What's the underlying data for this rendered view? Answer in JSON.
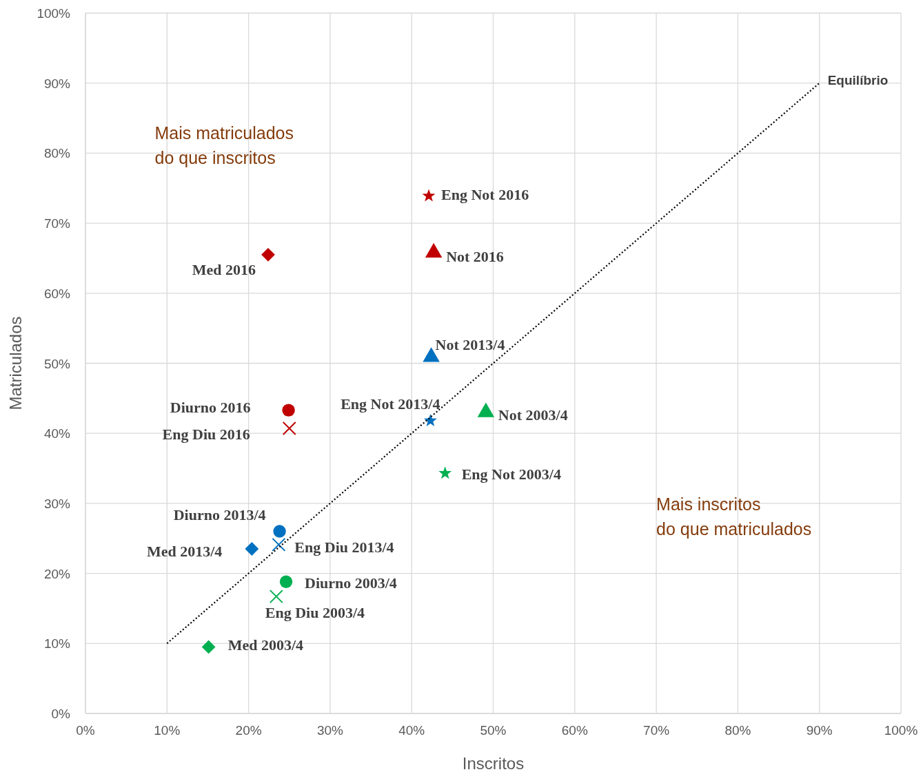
{
  "chart_data": {
    "type": "scatter",
    "xlabel": "Inscritos",
    "ylabel": "Matriculados",
    "xlim": [
      0,
      100
    ],
    "ylim": [
      0,
      100
    ],
    "xticks": [
      {
        "value": 0,
        "label": "0%"
      },
      {
        "value": 10,
        "label": "10%"
      },
      {
        "value": 20,
        "label": "20%"
      },
      {
        "value": 30,
        "label": "30%"
      },
      {
        "value": 40,
        "label": "40%"
      },
      {
        "value": 50,
        "label": "50%"
      },
      {
        "value": 60,
        "label": "60%"
      },
      {
        "value": 70,
        "label": "70%"
      },
      {
        "value": 80,
        "label": "80%"
      },
      {
        "value": 90,
        "label": "90%"
      },
      {
        "value": 100,
        "label": "100%"
      }
    ],
    "yticks": [
      {
        "value": 0,
        "label": "0%"
      },
      {
        "value": 10,
        "label": "10%"
      },
      {
        "value": 20,
        "label": "20%"
      },
      {
        "value": 30,
        "label": "30%"
      },
      {
        "value": 40,
        "label": "40%"
      },
      {
        "value": 50,
        "label": "50%"
      },
      {
        "value": 60,
        "label": "60%"
      },
      {
        "value": 70,
        "label": "70%"
      },
      {
        "value": 80,
        "label": "80%"
      },
      {
        "value": 90,
        "label": "90%"
      },
      {
        "value": 100,
        "label": "100%"
      }
    ],
    "grid": true,
    "annotations": [
      "Mais matriculados\ndo que inscritos",
      "Mais inscritos\ndo que matriculados"
    ],
    "series": [
      {
        "name": "Eng Not 2016",
        "x": [
          42.1
        ],
        "values": [
          73.9
        ],
        "color": "#c00000",
        "marker": "star"
      },
      {
        "name": "Not 2016",
        "x": [
          42.7
        ],
        "values": [
          65.8
        ],
        "color": "#c00000",
        "marker": "triangle"
      },
      {
        "name": "Med 2016",
        "x": [
          22.4
        ],
        "values": [
          65.5
        ],
        "color": "#c00000",
        "marker": "diamond"
      },
      {
        "name": "Not 2013/4",
        "x": [
          42.4
        ],
        "values": [
          50.9
        ],
        "color": "#0070c0",
        "marker": "triangle"
      },
      {
        "name": "Diurno 2016",
        "x": [
          24.9
        ],
        "values": [
          43.3
        ],
        "color": "#c00000",
        "marker": "circle"
      },
      {
        "name": "Eng Diu 2016",
        "x": [
          25.0
        ],
        "values": [
          40.7
        ],
        "color": "#c00000",
        "marker": "cross"
      },
      {
        "name": "Eng Not 2013/4",
        "x": [
          42.3
        ],
        "values": [
          41.8
        ],
        "color": "#0070c0",
        "marker": "star"
      },
      {
        "name": "Not 2003/4",
        "x": [
          49.1
        ],
        "values": [
          43.0
        ],
        "color": "#00b050",
        "marker": "triangle"
      },
      {
        "name": "Eng Not 2003/4",
        "x": [
          44.1
        ],
        "values": [
          34.3
        ],
        "color": "#00b050",
        "marker": "star"
      },
      {
        "name": "Diurno 2013/4",
        "x": [
          23.8
        ],
        "values": [
          26.0
        ],
        "color": "#0070c0",
        "marker": "circle"
      },
      {
        "name": "Med 2013/4",
        "x": [
          20.4
        ],
        "values": [
          23.5
        ],
        "color": "#0070c0",
        "marker": "diamond"
      },
      {
        "name": "Eng Diu 2013/4",
        "x": [
          23.7
        ],
        "values": [
          24.1
        ],
        "color": "#0070c0",
        "marker": "cross"
      },
      {
        "name": "Diurno 2003/4",
        "x": [
          24.6
        ],
        "values": [
          18.8
        ],
        "color": "#00b050",
        "marker": "circle"
      },
      {
        "name": "Eng Diu 2003/4",
        "x": [
          23.4
        ],
        "values": [
          16.7
        ],
        "color": "#00b050",
        "marker": "cross"
      },
      {
        "name": "Med 2003/4",
        "x": [
          15.1
        ],
        "values": [
          9.5
        ],
        "color": "#00b050",
        "marker": "diamond"
      },
      {
        "name": "Equilíbrio",
        "type": "line",
        "x": [
          10,
          90
        ],
        "values": [
          10,
          90
        ],
        "color": "#000000",
        "marker": "none",
        "line_style": "dotted"
      }
    ]
  }
}
